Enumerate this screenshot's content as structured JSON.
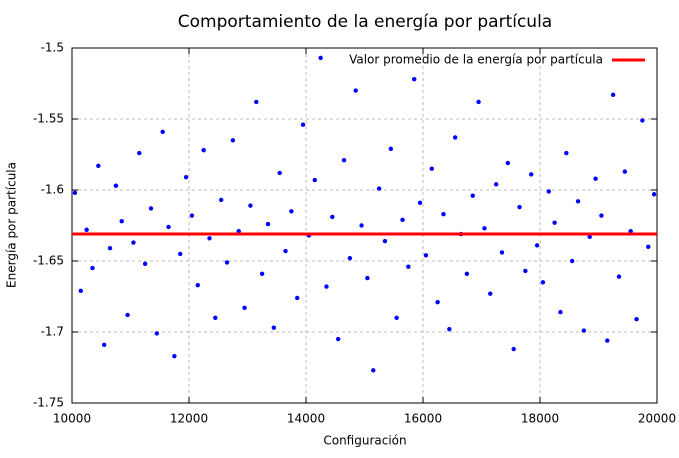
{
  "chart_data": {
    "type": "scatter",
    "title": "Comportamiento de la energía por partícula",
    "xlabel": "Configuración",
    "ylabel": "Energía por partícula",
    "xlim": [
      10000,
      20000
    ],
    "xticks": [
      10000,
      12000,
      14000,
      16000,
      18000,
      20000
    ],
    "ylim": [
      -1.75,
      -1.5
    ],
    "yticks": [
      -1.5,
      -1.55,
      -1.6,
      -1.65,
      -1.7,
      -1.75
    ],
    "grid": true,
    "legend": "top-right",
    "series": [
      {
        "color": "#0000ff",
        "x": [
          10050,
          10150,
          10250,
          10350,
          10450,
          10550,
          10650,
          10750,
          10850,
          10950,
          11050,
          11150,
          11250,
          11350,
          11450,
          11550,
          11650,
          11750,
          11850,
          11950,
          12050,
          12150,
          12250,
          12350,
          12450,
          12550,
          12650,
          12750,
          12850,
          12950,
          13050,
          13150,
          13250,
          13350,
          13450,
          13550,
          13650,
          13750,
          13850,
          13950,
          14050,
          14150,
          14250,
          14350,
          14450,
          14550,
          14650,
          14750,
          14850,
          14950,
          15050,
          15150,
          15250,
          15350,
          15450,
          15550,
          15650,
          15750,
          15850,
          15950,
          16050,
          16150,
          16250,
          16350,
          16450,
          16550,
          16650,
          16750,
          16850,
          16950,
          17050,
          17150,
          17250,
          17350,
          17450,
          17550,
          17650,
          17750,
          17850,
          17950,
          18050,
          18150,
          18250,
          18350,
          18450,
          18550,
          18650,
          18750,
          18850,
          18950,
          19050,
          19150,
          19250,
          19350,
          19450,
          19550,
          19650,
          19750,
          19850,
          19950
        ],
        "values": [
          -1.602,
          -1.671,
          -1.628,
          -1.655,
          -1.583,
          -1.709,
          -1.641,
          -1.597,
          -1.622,
          -1.688,
          -1.637,
          -1.574,
          -1.652,
          -1.613,
          -1.701,
          -1.559,
          -1.626,
          -1.717,
          -1.645,
          -1.591,
          -1.618,
          -1.667,
          -1.572,
          -1.634,
          -1.69,
          -1.607,
          -1.651,
          -1.565,
          -1.629,
          -1.683,
          -1.611,
          -1.538,
          -1.659,
          -1.624,
          -1.697,
          -1.588,
          -1.643,
          -1.615,
          -1.676,
          -1.554,
          -1.632,
          -1.593,
          -1.507,
          -1.668,
          -1.619,
          -1.705,
          -1.579,
          -1.648,
          -1.53,
          -1.625,
          -1.662,
          -1.727,
          -1.599,
          -1.636,
          -1.571,
          -1.69,
          -1.621,
          -1.654,
          -1.522,
          -1.609,
          -1.646,
          -1.585,
          -1.679,
          -1.617,
          -1.698,
          -1.563,
          -1.631,
          -1.659,
          -1.604,
          -1.538,
          -1.627,
          -1.673,
          -1.596,
          -1.644,
          -1.581,
          -1.712,
          -1.612,
          -1.657,
          -1.589,
          -1.639,
          -1.665,
          -1.601,
          -1.623,
          -1.686,
          -1.574,
          -1.65,
          -1.608,
          -1.699,
          -1.633,
          -1.592,
          -1.618,
          -1.706,
          -1.533,
          -1.661,
          -1.587,
          -1.629,
          -1.691,
          -1.551,
          -1.64,
          -1.603
        ]
      },
      {
        "name": "Valor promedio de la energía por partícula",
        "type": "line",
        "color": "#ff0000",
        "x": [
          10000,
          20000
        ],
        "values": [
          -1.631,
          -1.631
        ]
      }
    ]
  }
}
